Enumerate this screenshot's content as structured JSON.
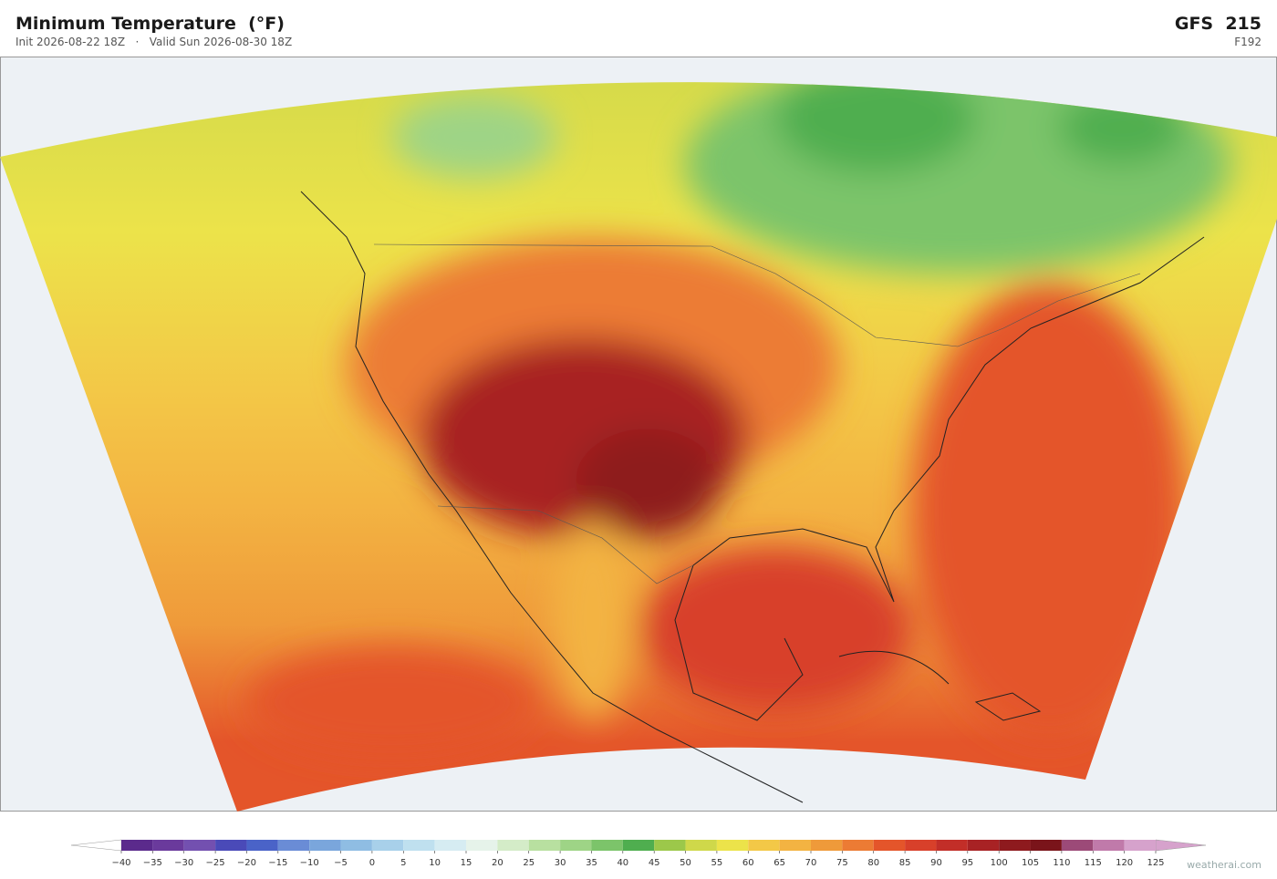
{
  "header": {
    "title": "Minimum Temperature  (°F)",
    "subtitle": "Init 2026-08-22 18Z   ·   Valid Sun 2026-08-30 18Z",
    "model": "GFS  215",
    "forecast_hour": "F192"
  },
  "colorbar": {
    "ticks": [
      {
        "value": -40,
        "label": "−40"
      },
      {
        "value": -35,
        "label": "−35"
      },
      {
        "value": -30,
        "label": "−30"
      },
      {
        "value": -25,
        "label": "−25"
      },
      {
        "value": -20,
        "label": "−20"
      },
      {
        "value": -15,
        "label": "−15"
      },
      {
        "value": -10,
        "label": "−10"
      },
      {
        "value": -5,
        "label": "−5"
      },
      0,
      5,
      10,
      15,
      20,
      25,
      30,
      35,
      40,
      45,
      50,
      55,
      60,
      65,
      70,
      75,
      80,
      85,
      90,
      95,
      100,
      105,
      110,
      115,
      120,
      125
    ],
    "colors": [
      "#5b2a8c",
      "#6a3a9c",
      "#7350b0",
      "#4a4ab8",
      "#4a63c8",
      "#6a8cd6",
      "#7aa6dc",
      "#8fbde3",
      "#a8d0ea",
      "#bfe0ef",
      "#d6ecf2",
      "#e6f3ea",
      "#d4ecc8",
      "#b8e0a0",
      "#9ed486",
      "#7cc46a",
      "#4fae4f",
      "#9cc84a",
      "#cfd84a",
      "#ece34a",
      "#f3c847",
      "#f3b342",
      "#ef9a3a",
      "#ec7b34",
      "#e4552a",
      "#d8402a",
      "#c22e28",
      "#a82224",
      "#8e1a1e",
      "#7a141a",
      "#9c4a78",
      "#c07aaa",
      "#d6a2cc"
    ],
    "under_color": "#ffffff",
    "over_color": "#d6a2cc"
  },
  "footer": {
    "credit": "weatherai.com"
  }
}
